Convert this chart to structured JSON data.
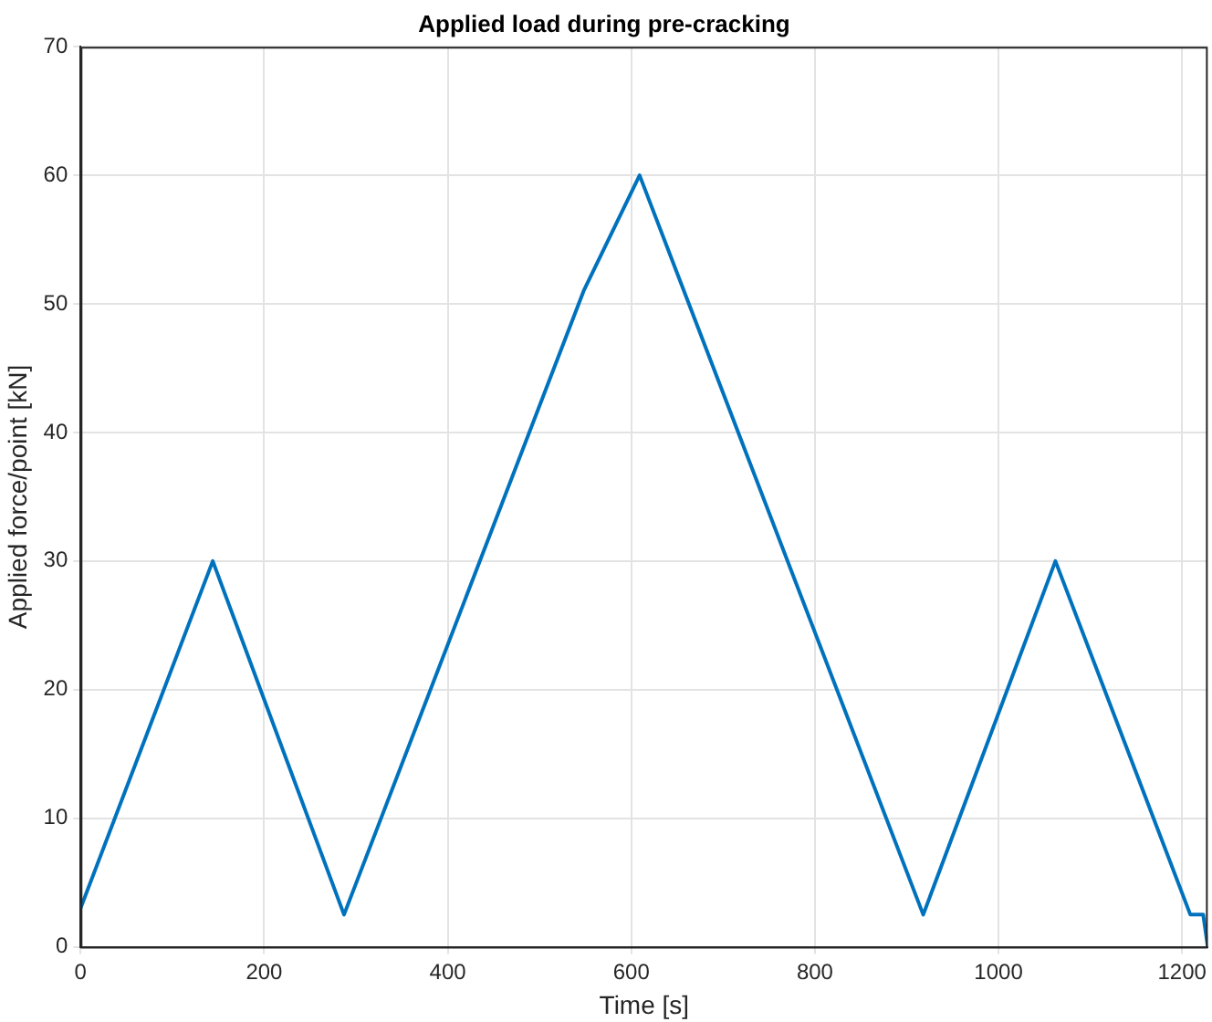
{
  "chart_data": {
    "type": "line",
    "title": "Applied load during pre-cracking",
    "xlabel": "Time [s]",
    "ylabel": "Applied force/point [kN]",
    "x": [
      0,
      144,
      287,
      548,
      609,
      918,
      1062,
      1209,
      1223,
      1228
    ],
    "series": [
      {
        "color": "#0072bd",
        "values": [
          3,
          30,
          2.5,
          51,
          60,
          2.5,
          30,
          2.5,
          2.5,
          0
        ]
      }
    ],
    "xlim": [
      0,
      1228
    ],
    "xticks": [
      0,
      200,
      400,
      600,
      800,
      1000,
      1200
    ],
    "ylim": [
      0,
      70
    ],
    "yticks": [
      0,
      10,
      20,
      30,
      40,
      50,
      60,
      70
    ],
    "grid": true,
    "legend": false,
    "marker": "none",
    "line_style": "solid"
  }
}
